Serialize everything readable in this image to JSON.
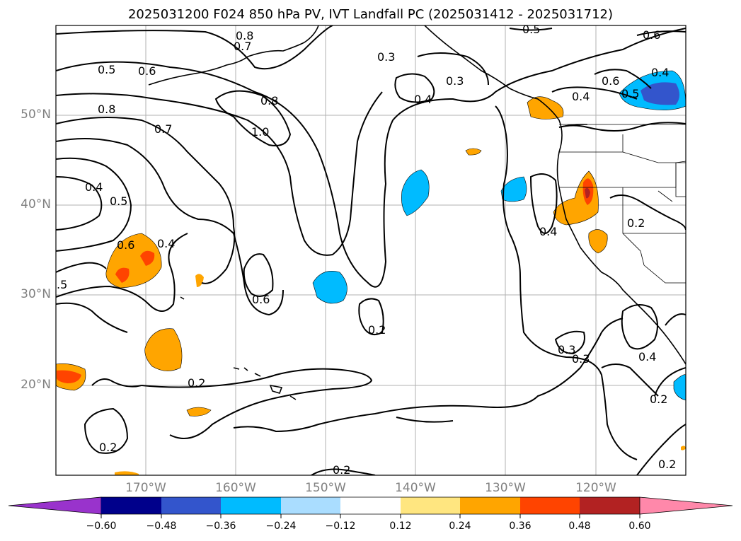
{
  "title": "2025031200 F024 850 hPa PV, IVT Landfall PC (2025031412 - 2025031712)",
  "lat_labels": [
    "50°N",
    "40°N",
    "30°N",
    "20°N"
  ],
  "lon_labels": [
    "170°W",
    "160°W",
    "150°W",
    "140°W",
    "130°W",
    "120°W"
  ],
  "colorbar": {
    "ticks": [
      "−0.60",
      "−0.48",
      "−0.36",
      "−0.24",
      "−0.12",
      "0.12",
      "0.24",
      "0.36",
      "0.48",
      "0.60"
    ],
    "colors": [
      "#9933cc",
      "#00008b",
      "#3355cc",
      "#00bbff",
      "#aaddff",
      "#ffffff",
      "#ffe680",
      "#ffa500",
      "#ff4400",
      "#b22222",
      "#ff88aa"
    ]
  },
  "contour_labels": [
    "0.8",
    "0.7",
    "0.5",
    "0.6",
    "0.8",
    "0.8",
    "1.0",
    "0.7",
    "0.4",
    "0.5",
    "0.6",
    "0.4",
    ".5",
    "0.6",
    "0.2",
    "0.3",
    "0.4",
    "0.3",
    "0.5",
    "0.6",
    "0.4",
    "0.6",
    "0.5",
    "0.4",
    "0.4",
    "0.2",
    "0.2",
    "0.3",
    "0.3",
    "0.4",
    "0.2",
    "0.2",
    "0.2",
    "0.2"
  ]
}
